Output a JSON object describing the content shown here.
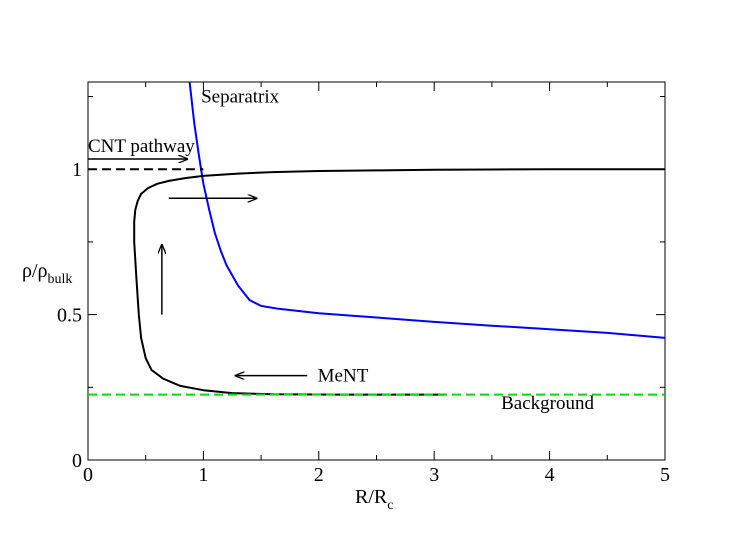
{
  "chart_data": {
    "type": "line",
    "xlabel": "R/R",
    "xlabel_sub": "c",
    "ylabel": "ρ/ρ",
    "ylabel_sub": "bulk",
    "xlim": [
      0,
      5
    ],
    "ylim": [
      0,
      1.3
    ],
    "xticks": [
      0,
      1,
      2,
      3,
      4,
      5
    ],
    "xtick_labels": [
      "0",
      "1",
      "2",
      "3",
      "4",
      "5"
    ],
    "yticks": [
      0,
      0.5,
      1
    ],
    "ytick_labels": [
      "0",
      "0.5",
      "1"
    ],
    "x_minor_step": 0.5,
    "y_minor_step": 0.25,
    "series": [
      {
        "name": "Separatrix",
        "color": "#0000ff",
        "style": "solid",
        "x": [
          0.88,
          0.92,
          0.96,
          1.0,
          1.05,
          1.1,
          1.15,
          1.2,
          1.3,
          1.4,
          1.5,
          1.65,
          2.0,
          2.5,
          3.0,
          3.5,
          4.0,
          4.5,
          5.0
        ],
        "y": [
          1.3,
          1.16,
          1.05,
          0.95,
          0.86,
          0.78,
          0.72,
          0.67,
          0.6,
          0.55,
          0.53,
          0.52,
          0.505,
          0.49,
          0.475,
          0.462,
          0.45,
          0.437,
          0.42
        ]
      },
      {
        "name": "MeNT pathway",
        "color": "#000000",
        "style": "solid",
        "x": [
          3.1,
          2.2,
          1.6,
          1.25,
          1.0,
          0.8,
          0.65,
          0.55,
          0.5,
          0.46,
          0.44,
          0.42,
          0.4,
          0.4,
          0.41,
          0.43,
          0.46,
          0.52,
          0.6,
          0.7,
          0.85,
          1.0,
          1.3,
          1.6,
          2.0,
          2.5,
          3.0,
          3.5,
          4.0,
          4.5,
          5.0
        ],
        "y": [
          0.225,
          0.225,
          0.226,
          0.23,
          0.24,
          0.255,
          0.28,
          0.31,
          0.35,
          0.42,
          0.5,
          0.62,
          0.75,
          0.82,
          0.86,
          0.89,
          0.915,
          0.935,
          0.95,
          0.96,
          0.97,
          0.977,
          0.985,
          0.99,
          0.994,
          0.996,
          0.998,
          0.999,
          1.0,
          1.0,
          1.0
        ]
      },
      {
        "name": "CNT pathway",
        "color": "#000000",
        "style": "dashed",
        "x": [
          0,
          1.0
        ],
        "y": [
          1.0,
          1.0
        ]
      },
      {
        "name": "Background",
        "color": "#00dd00",
        "style": "dashed",
        "x": [
          0,
          5.0
        ],
        "y": [
          0.225,
          0.225
        ]
      }
    ],
    "arrows": [
      {
        "name": "cnt-arrow",
        "from": [
          0,
          1.035
        ],
        "to": [
          0.86,
          1.035
        ]
      },
      {
        "name": "right-arrow",
        "from": [
          0.7,
          0.9
        ],
        "to": [
          1.46,
          0.9
        ]
      },
      {
        "name": "up-arrow",
        "from": [
          0.64,
          0.5
        ],
        "to": [
          0.64,
          0.74
        ]
      },
      {
        "name": "left-arrow",
        "from": [
          1.9,
          0.29
        ],
        "to": [
          1.28,
          0.29
        ]
      }
    ],
    "annotations": [
      {
        "name": "label-separatrix",
        "text": "Separatrix",
        "x": 0.98,
        "y": 1.23
      },
      {
        "name": "label-cnt-pathway",
        "text": "CNT pathway",
        "x": 0.0,
        "y": 1.06
      },
      {
        "name": "label-ment",
        "text": "MeNT",
        "x": 1.99,
        "y": 0.27
      },
      {
        "name": "label-background",
        "text": "Background",
        "x": 3.58,
        "y": 0.175
      }
    ]
  }
}
